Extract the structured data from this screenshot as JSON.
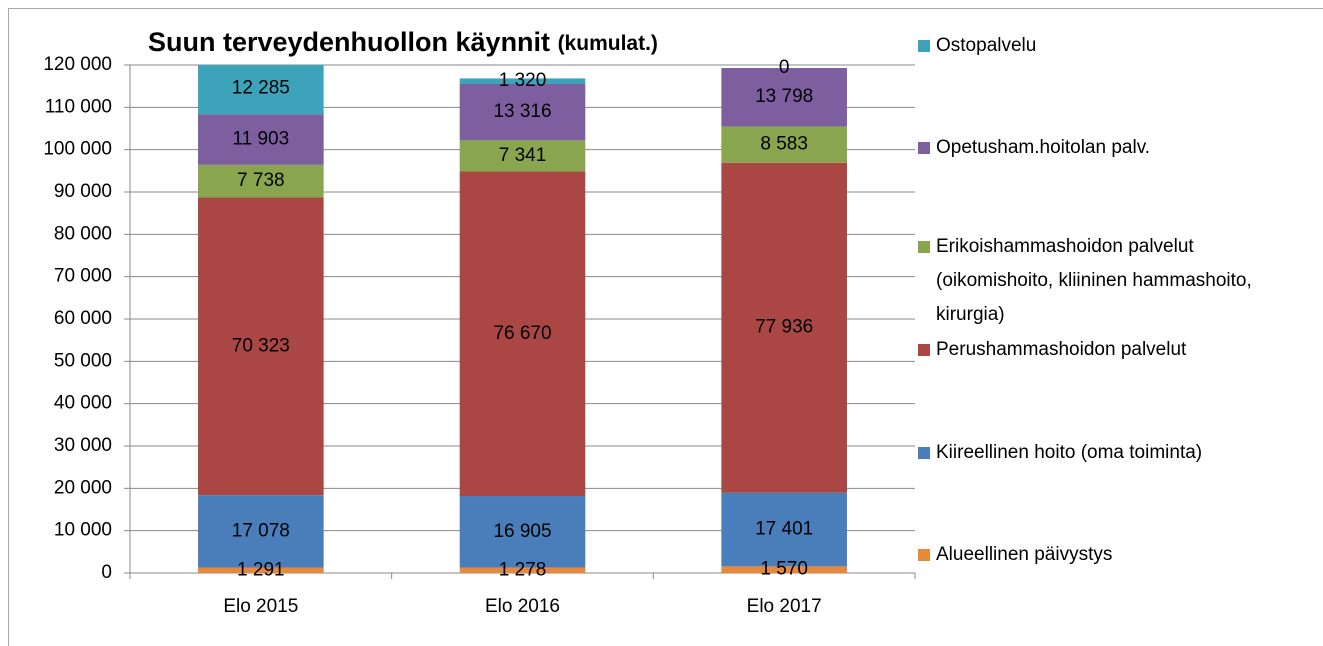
{
  "chart_data": {
    "type": "stacked_bar",
    "title": "Suun terveydenhuollon käynnit",
    "subtitle": "(kumulat.)",
    "categories": [
      "Elo 2015",
      "Elo 2016",
      "Elo 2017"
    ],
    "series": [
      {
        "name": "Alueellinen päivystys",
        "color": "#e8883a",
        "values": [
          1291,
          1278,
          1570
        ],
        "value_labels": [
          "1 291",
          "1 278",
          "1 570"
        ]
      },
      {
        "name": "Kiireellinen hoito (oma toiminta)",
        "color": "#4a7ebb",
        "values": [
          17078,
          16905,
          17401
        ],
        "value_labels": [
          "17 078",
          "16 905",
          "17 401"
        ]
      },
      {
        "name": "Perushammashoidon palvelut",
        "color": "#aa4643",
        "values": [
          70323,
          76670,
          77936
        ],
        "value_labels": [
          "70 323",
          "76 670",
          "77 936"
        ]
      },
      {
        "name": "Erikoishammashoidon palvelut (oikomishoito, kliininen hammashoito, kirurgia)",
        "color": "#89a54e",
        "values": [
          7738,
          7341,
          8583
        ],
        "value_labels": [
          "7 738",
          "7 341",
          "8 583"
        ]
      },
      {
        "name": "Opetusham.hoitolan palv.",
        "color": "#7d5fa0",
        "values": [
          11903,
          13316,
          13798
        ],
        "value_labels": [
          "11 903",
          "13 316",
          "13 798"
        ]
      },
      {
        "name": "Ostopalvelu",
        "color": "#3ca3bb",
        "values": [
          12285,
          1320,
          0
        ],
        "value_labels": [
          "12 285",
          "1 320",
          "0"
        ]
      }
    ],
    "ylim": [
      0,
      120000
    ],
    "yticks": [
      0,
      {
        "value": 10000,
        "label": "10 000"
      },
      {
        "value": 20000,
        "label": "20 000"
      },
      {
        "value": 30000,
        "label": "30 000"
      },
      {
        "value": 40000,
        "label": "40 000"
      },
      {
        "value": 50000,
        "label": "50 000"
      },
      {
        "value": 60000,
        "label": "60 000"
      },
      {
        "value": 70000,
        "label": "70 000"
      },
      {
        "value": 80000,
        "label": "80 000"
      },
      {
        "value": 90000,
        "label": "90 000"
      },
      {
        "value": 100000,
        "label": "100 000"
      },
      {
        "value": 110000,
        "label": "110 000"
      },
      {
        "value": 120000,
        "label": "120 000"
      }
    ],
    "grid": true,
    "legend": "right"
  }
}
